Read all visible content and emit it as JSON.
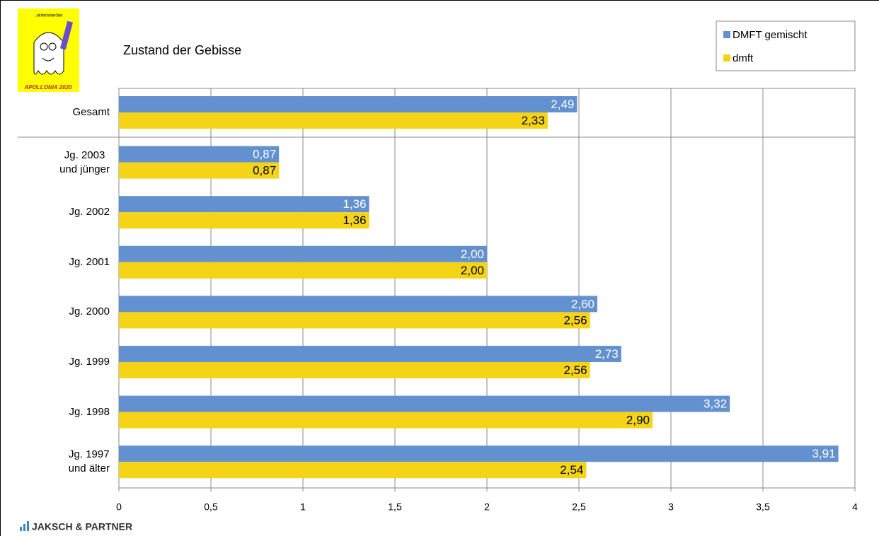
{
  "chart_data": {
    "type": "hbar",
    "title": "Zustand der Gebisse",
    "categories": [
      "Gesamt",
      "Jg. 2003\nund jünger",
      "Jg. 2002",
      "Jg. 2001",
      "Jg. 2000",
      "Jg. 1999",
      "Jg. 1998",
      "Jg. 1997\nund älter"
    ],
    "series": [
      {
        "name": "DMFT gemischt",
        "color": "#6391d0",
        "values": [
          2.49,
          0.87,
          1.36,
          2.0,
          2.6,
          2.73,
          3.32,
          3.91
        ],
        "value_labels": [
          "2,49",
          "0,87",
          "1,36",
          "2,00",
          "2,60",
          "2,73",
          "3,32",
          "3,91"
        ]
      },
      {
        "name": "dmft",
        "color": "#f5d418",
        "values": [
          2.33,
          0.87,
          1.36,
          2.0,
          2.56,
          2.56,
          2.9,
          2.54
        ],
        "value_labels": [
          "2,33",
          "0,87",
          "1,36",
          "2,00",
          "2,56",
          "2,56",
          "2,90",
          "2,54"
        ]
      }
    ],
    "xlim": [
      0,
      4
    ],
    "xticks": [
      0,
      {
        "value": 0.5,
        "label": "0,5"
      },
      1,
      {
        "value": 1.5,
        "label": "1,5"
      },
      2,
      {
        "value": 2.5,
        "label": "2,5"
      },
      3,
      {
        "value": 3.5,
        "label": "3,5"
      },
      4
    ],
    "grid": true,
    "legend_position": "top-right"
  },
  "logo": {
    "caption": "...und Karies hat keine Chance",
    "name": "APOLLONIA 2020"
  },
  "footer": "JAKSCH & PARTNER"
}
